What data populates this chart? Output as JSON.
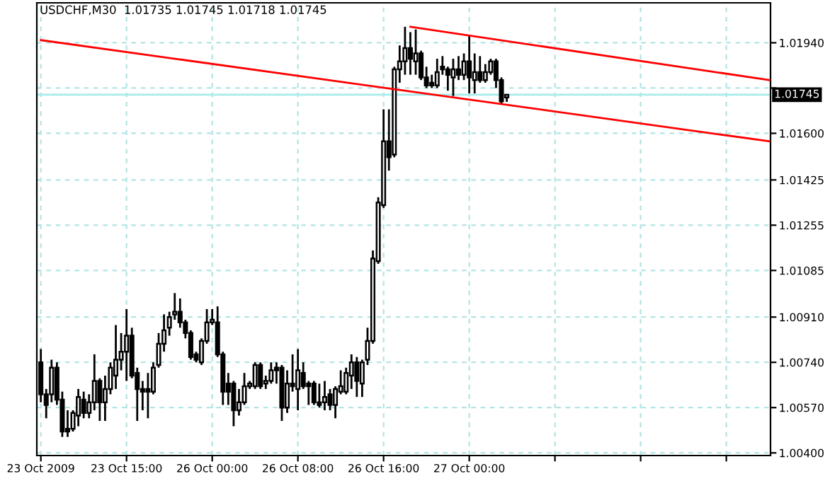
{
  "chart_data": {
    "type": "candlestick",
    "title": "USDCHF,M30  1.01735 1.01745 1.01718 1.01745",
    "categories": [
      "23 Oct 2009",
      null,
      null,
      null,
      null,
      null,
      null,
      null,
      null,
      null,
      null,
      null,
      null,
      null,
      null,
      null,
      "23 Oct 15:00",
      null,
      null,
      null,
      null,
      null,
      null,
      null,
      null,
      null,
      null,
      null,
      null,
      null,
      null,
      null,
      "26 Oct 00:00",
      null,
      null,
      null,
      null,
      null,
      null,
      null,
      null,
      null,
      null,
      null,
      null,
      null,
      null,
      null,
      "26 Oct 08:00",
      null,
      null,
      null,
      null,
      null,
      null,
      null,
      null,
      null,
      null,
      null,
      null,
      null,
      null,
      null,
      "26 Oct 16:00",
      null,
      null,
      null,
      null,
      null,
      null,
      null,
      null,
      null,
      null,
      null,
      null,
      null,
      null,
      null,
      "27 Oct 00:00",
      null,
      null,
      null,
      null,
      null,
      null,
      null,
      null,
      null,
      null,
      null,
      null,
      null,
      null,
      null,
      null,
      null,
      null,
      null,
      null,
      null,
      null,
      null,
      null,
      null,
      null,
      null,
      null,
      null,
      null,
      null,
      null,
      null,
      null,
      null,
      null,
      null,
      null,
      null,
      null,
      null,
      null,
      null,
      null,
      null,
      null,
      null,
      null,
      null,
      null,
      null,
      null,
      null,
      null,
      null,
      null
    ],
    "color": "#000000",
    "ohlc": [
      [
        1.0074,
        1.0079,
        1.0059,
        1.0062
      ],
      [
        1.0062,
        1.0064,
        1.0053,
        1.0058
      ],
      [
        1.0062,
        1.0075,
        1.0059,
        1.0072
      ],
      [
        1.0072,
        1.0074,
        1.0058,
        1.006
      ],
      [
        1.006,
        1.0063,
        1.0046,
        1.0048
      ],
      [
        1.0049,
        1.0056,
        1.0046,
        1.0048
      ],
      [
        1.0049,
        1.0056,
        1.0048,
        1.0055
      ],
      [
        1.0054,
        1.0064,
        1.005,
        1.0061
      ],
      [
        1.006,
        1.0063,
        1.0053,
        1.0055
      ],
      [
        1.0055,
        1.0062,
        1.0053,
        1.0059
      ],
      [
        1.0059,
        1.0077,
        1.0056,
        1.0067
      ],
      [
        1.0067,
        1.0068,
        1.0052,
        1.0059
      ],
      [
        1.0059,
        1.0069,
        1.0052,
        1.0064
      ],
      [
        1.0064,
        1.0074,
        1.0062,
        1.0072
      ],
      [
        1.0069,
        1.0088,
        1.0064,
        1.0075
      ],
      [
        1.0075,
        1.0085,
        1.0071,
        1.0078
      ],
      [
        1.0078,
        1.0094,
        1.0067,
        1.0084
      ],
      [
        1.0084,
        1.0087,
        1.0068,
        1.0069
      ],
      [
        1.007,
        1.0072,
        1.0052,
        1.0064
      ],
      [
        1.0064,
        1.0067,
        1.0056,
        1.0063
      ],
      [
        1.0064,
        1.007,
        1.0053,
        1.0063
      ],
      [
        1.0063,
        1.0074,
        1.0062,
        1.0072
      ],
      [
        1.0073,
        1.0085,
        1.0072,
        1.0081
      ],
      [
        1.0081,
        1.0092,
        1.0078,
        1.0086
      ],
      [
        1.0087,
        1.0093,
        1.0084,
        1.0091
      ],
      [
        1.0092,
        1.01,
        1.009,
        1.0093
      ],
      [
        1.0093,
        1.0098,
        1.0087,
        1.0089
      ],
      [
        1.0089,
        1.009,
        1.0083,
        1.0085
      ],
      [
        1.0085,
        1.0086,
        1.0075,
        1.0076
      ],
      [
        1.0077,
        1.0078,
        1.0074,
        1.0075
      ],
      [
        1.0074,
        1.0083,
        1.0073,
        1.0082
      ],
      [
        1.0082,
        1.0094,
        1.0081,
        1.0089
      ],
      [
        1.0089,
        1.0094,
        1.0088,
        1.009
      ],
      [
        1.0089,
        1.0095,
        1.0076,
        1.0077
      ],
      [
        1.0077,
        1.0078,
        1.0058,
        1.0063
      ],
      [
        1.0066,
        1.007,
        1.0058,
        1.0063
      ],
      [
        1.0066,
        1.0067,
        1.005,
        1.0056
      ],
      [
        1.0056,
        1.0064,
        1.0054,
        1.0059
      ],
      [
        1.0059,
        1.007,
        1.0058,
        1.0065
      ],
      [
        1.0065,
        1.0067,
        1.0064,
        1.0066
      ],
      [
        1.0065,
        1.0074,
        1.0064,
        1.0073
      ],
      [
        1.0073,
        1.0074,
        1.0064,
        1.0065
      ],
      [
        1.0066,
        1.0069,
        1.0064,
        1.0067
      ],
      [
        1.0067,
        1.0074,
        1.0066,
        1.0071
      ],
      [
        1.0072,
        1.0074,
        1.0066,
        1.0071
      ],
      [
        1.0072,
        1.0073,
        1.0052,
        1.0057
      ],
      [
        1.0057,
        1.0071,
        1.0055,
        1.0066
      ],
      [
        1.0066,
        1.0077,
        1.0063,
        1.0065
      ],
      [
        1.0064,
        1.0079,
        1.0056,
        1.0071
      ],
      [
        1.007,
        1.0074,
        1.0064,
        1.0065
      ],
      [
        1.0066,
        1.0067,
        1.0058,
        1.0065
      ],
      [
        1.0066,
        1.0067,
        1.0058,
        1.0059
      ],
      [
        1.0059,
        1.0066,
        1.0057,
        1.0058
      ],
      [
        1.0059,
        1.0067,
        1.0056,
        1.0061
      ],
      [
        1.0062,
        1.0064,
        1.0056,
        1.0058
      ],
      [
        1.0058,
        1.0065,
        1.0053,
        1.0064
      ],
      [
        1.0063,
        1.0071,
        1.0062,
        1.0065
      ],
      [
        1.0063,
        1.0072,
        1.0062,
        1.007
      ],
      [
        1.0069,
        1.0077,
        1.0064,
        1.0074
      ],
      [
        1.0074,
        1.0076,
        1.0061,
        1.0067
      ],
      [
        1.0066,
        1.0075,
        1.0061,
        1.0074
      ],
      [
        1.0075,
        1.0087,
        1.0073,
        1.0082
      ],
      [
        1.0082,
        1.0116,
        1.0081,
        1.0113
      ],
      [
        1.0112,
        1.0136,
        1.0111,
        1.0134
      ],
      [
        1.0133,
        1.0169,
        1.0132,
        1.0157
      ],
      [
        1.0157,
        1.0169,
        1.0146,
        1.0151
      ],
      [
        1.0152,
        1.0185,
        1.0151,
        1.0184
      ],
      [
        1.0184,
        1.0193,
        1.0179,
        1.0187
      ],
      [
        1.0187,
        1.02,
        1.0182,
        1.0192
      ],
      [
        1.0192,
        1.0198,
        1.0182,
        1.0188
      ],
      [
        1.0187,
        1.0199,
        1.0182,
        1.019
      ],
      [
        1.019,
        1.0191,
        1.018,
        1.0181
      ],
      [
        1.0181,
        1.0185,
        1.0177,
        1.0178
      ],
      [
        1.0179,
        1.0182,
        1.0177,
        1.0178
      ],
      [
        1.0178,
        1.0188,
        1.0177,
        1.0183
      ],
      [
        1.0185,
        1.0189,
        1.0182,
        1.0184
      ],
      [
        1.0184,
        1.0185,
        1.0176,
        1.0182
      ],
      [
        1.0181,
        1.0188,
        1.0174,
        1.0184
      ],
      [
        1.0184,
        1.0189,
        1.018,
        1.0182
      ],
      [
        1.0182,
        1.019,
        1.018,
        1.0187
      ],
      [
        1.0187,
        1.0197,
        1.0175,
        1.0181
      ],
      [
        1.018,
        1.019,
        1.0175,
        1.0183
      ],
      [
        1.0183,
        1.0189,
        1.0179,
        1.018
      ],
      [
        1.018,
        1.0186,
        1.0179,
        1.0183
      ],
      [
        1.0183,
        1.0188,
        1.0182,
        1.0187
      ],
      [
        1.0187,
        1.0188,
        1.0177,
        1.018
      ],
      [
        1.018,
        1.0181,
        1.0171,
        1.0172
      ],
      [
        1.01735,
        1.01745,
        1.01718,
        1.01745
      ],
      null,
      null,
      null,
      null,
      null,
      null,
      null,
      null,
      null,
      null,
      null,
      null,
      null,
      null,
      null,
      null,
      null,
      null,
      null,
      null,
      null,
      null,
      null,
      null,
      null,
      null,
      null,
      null,
      null,
      null,
      null,
      null,
      null,
      null,
      null,
      null,
      null,
      null,
      null,
      null,
      null,
      null,
      null,
      null,
      null,
      null,
      null,
      null,
      null
    ],
    "series": [
      {
        "type": "line",
        "color": "#ff0000",
        "values": [
          null,
          null,
          null,
          null,
          null,
          null,
          null,
          null,
          null,
          null,
          null,
          null,
          null,
          null,
          null,
          null,
          null,
          null,
          null,
          null,
          null,
          null,
          null,
          null,
          null,
          null,
          null,
          null,
          null,
          null,
          null,
          null,
          null,
          null,
          null,
          null,
          null,
          null,
          null,
          null,
          null,
          null,
          null,
          null,
          null,
          null,
          null,
          null,
          null,
          null,
          null,
          null,
          null,
          null,
          null,
          null,
          null,
          null,
          null,
          null,
          null,
          null,
          null,
          null,
          null,
          null,
          null,
          null,
          null,
          1.02,
          null,
          null,
          null,
          null,
          null,
          null,
          null,
          null,
          null,
          null,
          null,
          null,
          null,
          null,
          null,
          null,
          null,
          null,
          null,
          null,
          null,
          null,
          null,
          null,
          null,
          null,
          null,
          null,
          null,
          null,
          null,
          null,
          null,
          null,
          null,
          null,
          null,
          null,
          null,
          null,
          null,
          null,
          null,
          null,
          null,
          null,
          null,
          null,
          null,
          null,
          null,
          null,
          null,
          null,
          null,
          null,
          null,
          null,
          null,
          null,
          null,
          null,
          null,
          null,
          null,
          null,
          1.018
        ]
      },
      {
        "type": "line",
        "color": "#ff0000",
        "values": [
          1.0195,
          null,
          null,
          null,
          null,
          null,
          null,
          null,
          null,
          null,
          null,
          null,
          null,
          null,
          null,
          null,
          null,
          null,
          null,
          null,
          null,
          null,
          null,
          null,
          null,
          null,
          null,
          null,
          null,
          null,
          null,
          null,
          null,
          null,
          null,
          null,
          null,
          null,
          null,
          null,
          null,
          null,
          null,
          null,
          null,
          null,
          null,
          null,
          null,
          null,
          null,
          null,
          null,
          null,
          null,
          null,
          null,
          null,
          null,
          null,
          null,
          null,
          null,
          null,
          null,
          null,
          null,
          null,
          null,
          null,
          null,
          null,
          null,
          null,
          null,
          null,
          null,
          null,
          null,
          null,
          null,
          null,
          null,
          null,
          null,
          null,
          null,
          null,
          null,
          null,
          null,
          null,
          null,
          null,
          null,
          null,
          null,
          null,
          null,
          null,
          null,
          null,
          null,
          null,
          null,
          null,
          null,
          null,
          null,
          null,
          null,
          null,
          null,
          null,
          null,
          null,
          null,
          null,
          null,
          null,
          null,
          null,
          null,
          null,
          null,
          null,
          null,
          null,
          null,
          null,
          null,
          null,
          null,
          null,
          null,
          null,
          1.0157
        ]
      }
    ],
    "ylim": [
      1.0039,
      1.0209
    ],
    "yticks": [
      {
        "value": 1.004,
        "label": "1.00400"
      },
      {
        "value": 1.0057,
        "label": "1.00570"
      },
      {
        "value": 1.0074,
        "label": "1.00740"
      },
      {
        "value": 1.0091,
        "label": "1.00910"
      },
      1.01085,
      1.01255,
      1.01425,
      {
        "value": 1.016,
        "label": "1.01600"
      },
      {
        "value": 1.0177,
        "label": null
      },
      {
        "value": 1.0194,
        "label": "1.01940"
      }
    ],
    "grid": true,
    "ref_lines": [
      {
        "axis": "y",
        "value": 1.01745,
        "label": "1.01745",
        "color": "#a6ecec"
      }
    ]
  }
}
